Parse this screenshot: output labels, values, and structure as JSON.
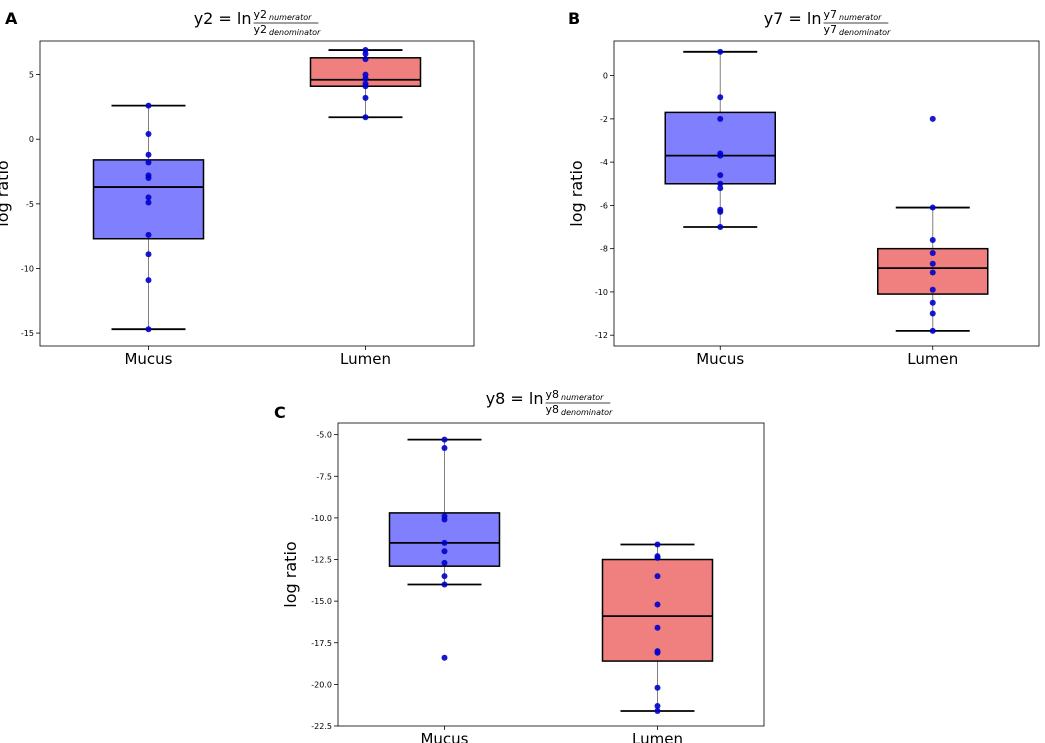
{
  "chart_data": [
    {
      "type": "box",
      "panel_letter": "A",
      "title": {
        "prefix": "y2 = ln",
        "num": "y2",
        "num_sub": "numerator",
        "den": "y2",
        "den_sub": "denominator"
      },
      "ylabel": "log ratio",
      "xlabel": "",
      "categories": [
        "Mucus",
        "Lumen"
      ],
      "ylim": [
        -16,
        7.6
      ],
      "yticks": [
        5,
        0,
        -5,
        -10,
        -15
      ],
      "ytick_labels": [
        "5",
        "0",
        "-5",
        "-10",
        "-15"
      ],
      "boxes": [
        {
          "name": "Mucus",
          "color": "#8080ff",
          "q1": -7.7,
          "median": -3.7,
          "q3": -1.6,
          "whisker_low": -14.7,
          "whisker_high": 2.6,
          "points": [
            2.6,
            0.4,
            -1.2,
            -1.8,
            -2.8,
            -3.0,
            -4.5,
            -4.9,
            -7.4,
            -8.9,
            -10.9,
            -14.7
          ]
        },
        {
          "name": "Lumen",
          "color": "#f08080",
          "q1": 4.1,
          "median": 4.6,
          "q3": 6.3,
          "whisker_low": 1.7,
          "whisker_high": 6.9,
          "points": [
            6.9,
            6.6,
            6.2,
            5.0,
            4.7,
            4.3,
            4.1,
            3.2,
            1.7
          ]
        }
      ]
    },
    {
      "type": "box",
      "panel_letter": "B",
      "title": {
        "prefix": "y7 = ln",
        "num": "y7",
        "num_sub": "numerator",
        "den": "y7",
        "den_sub": "denominator"
      },
      "ylabel": "log ratio",
      "xlabel": "",
      "categories": [
        "Mucus",
        "Lumen"
      ],
      "ylim": [
        -12.5,
        1.6
      ],
      "yticks": [
        0,
        -2,
        -4,
        -6,
        -8,
        -10,
        -12
      ],
      "ytick_labels": [
        "0",
        "-2",
        "-4",
        "-6",
        "-8",
        "-10",
        "-12"
      ],
      "boxes": [
        {
          "name": "Mucus",
          "color": "#8080ff",
          "q1": -5.0,
          "median": -3.7,
          "q3": -1.7,
          "whisker_low": -7.0,
          "whisker_high": 1.1,
          "points": [
            1.1,
            -2.0,
            -1.0,
            -3.6,
            -3.7,
            -4.6,
            -5.0,
            -5.2,
            -6.2,
            -6.3,
            -7.0
          ]
        },
        {
          "name": "Lumen",
          "color": "#f08080",
          "q1": -10.1,
          "median": -8.9,
          "q3": -8.0,
          "whisker_low": -11.8,
          "whisker_high": -6.1,
          "points": [
            -2.0,
            -6.1,
            -7.6,
            -8.2,
            -8.7,
            -9.1,
            -9.9,
            -10.5,
            -11.0,
            -11.8
          ]
        }
      ]
    },
    {
      "type": "box",
      "panel_letter": "C",
      "title": {
        "prefix": "y8 = ln",
        "num": "y8",
        "num_sub": "numerator",
        "den": "y8",
        "den_sub": "denominator"
      },
      "ylabel": "log ratio",
      "xlabel": "",
      "categories": [
        "Mucus",
        "Lumen"
      ],
      "ylim": [
        -22.5,
        -4.3
      ],
      "yticks": [
        -5.0,
        -7.5,
        -10.0,
        -12.5,
        -15.0,
        -17.5,
        -20.0,
        -22.5
      ],
      "ytick_labels": [
        "-5.0",
        "-7.5",
        "-10.0",
        "-12.5",
        "-15.0",
        "-17.5",
        "-20.0",
        "-22.5"
      ],
      "boxes": [
        {
          "name": "Mucus",
          "color": "#8080ff",
          "q1": -12.9,
          "median": -11.5,
          "q3": -9.7,
          "whisker_low": -14.0,
          "whisker_high": -5.3,
          "points": [
            -5.3,
            -5.8,
            -9.9,
            -10.1,
            -11.5,
            -12.0,
            -12.7,
            -13.5,
            -14.0,
            -18.4
          ]
        },
        {
          "name": "Lumen",
          "color": "#f08080",
          "q1": -18.6,
          "median": -15.9,
          "q3": -12.5,
          "whisker_low": -21.6,
          "whisker_high": -11.6,
          "points": [
            -11.6,
            -12.3,
            -12.4,
            -13.5,
            -15.2,
            -16.6,
            -18.0,
            -18.1,
            -20.2,
            -21.3,
            -21.6
          ]
        }
      ]
    }
  ],
  "colors": {
    "point": "#0000cc",
    "median_line": "#000000",
    "whisker": "#000000",
    "axis": "#000000"
  }
}
